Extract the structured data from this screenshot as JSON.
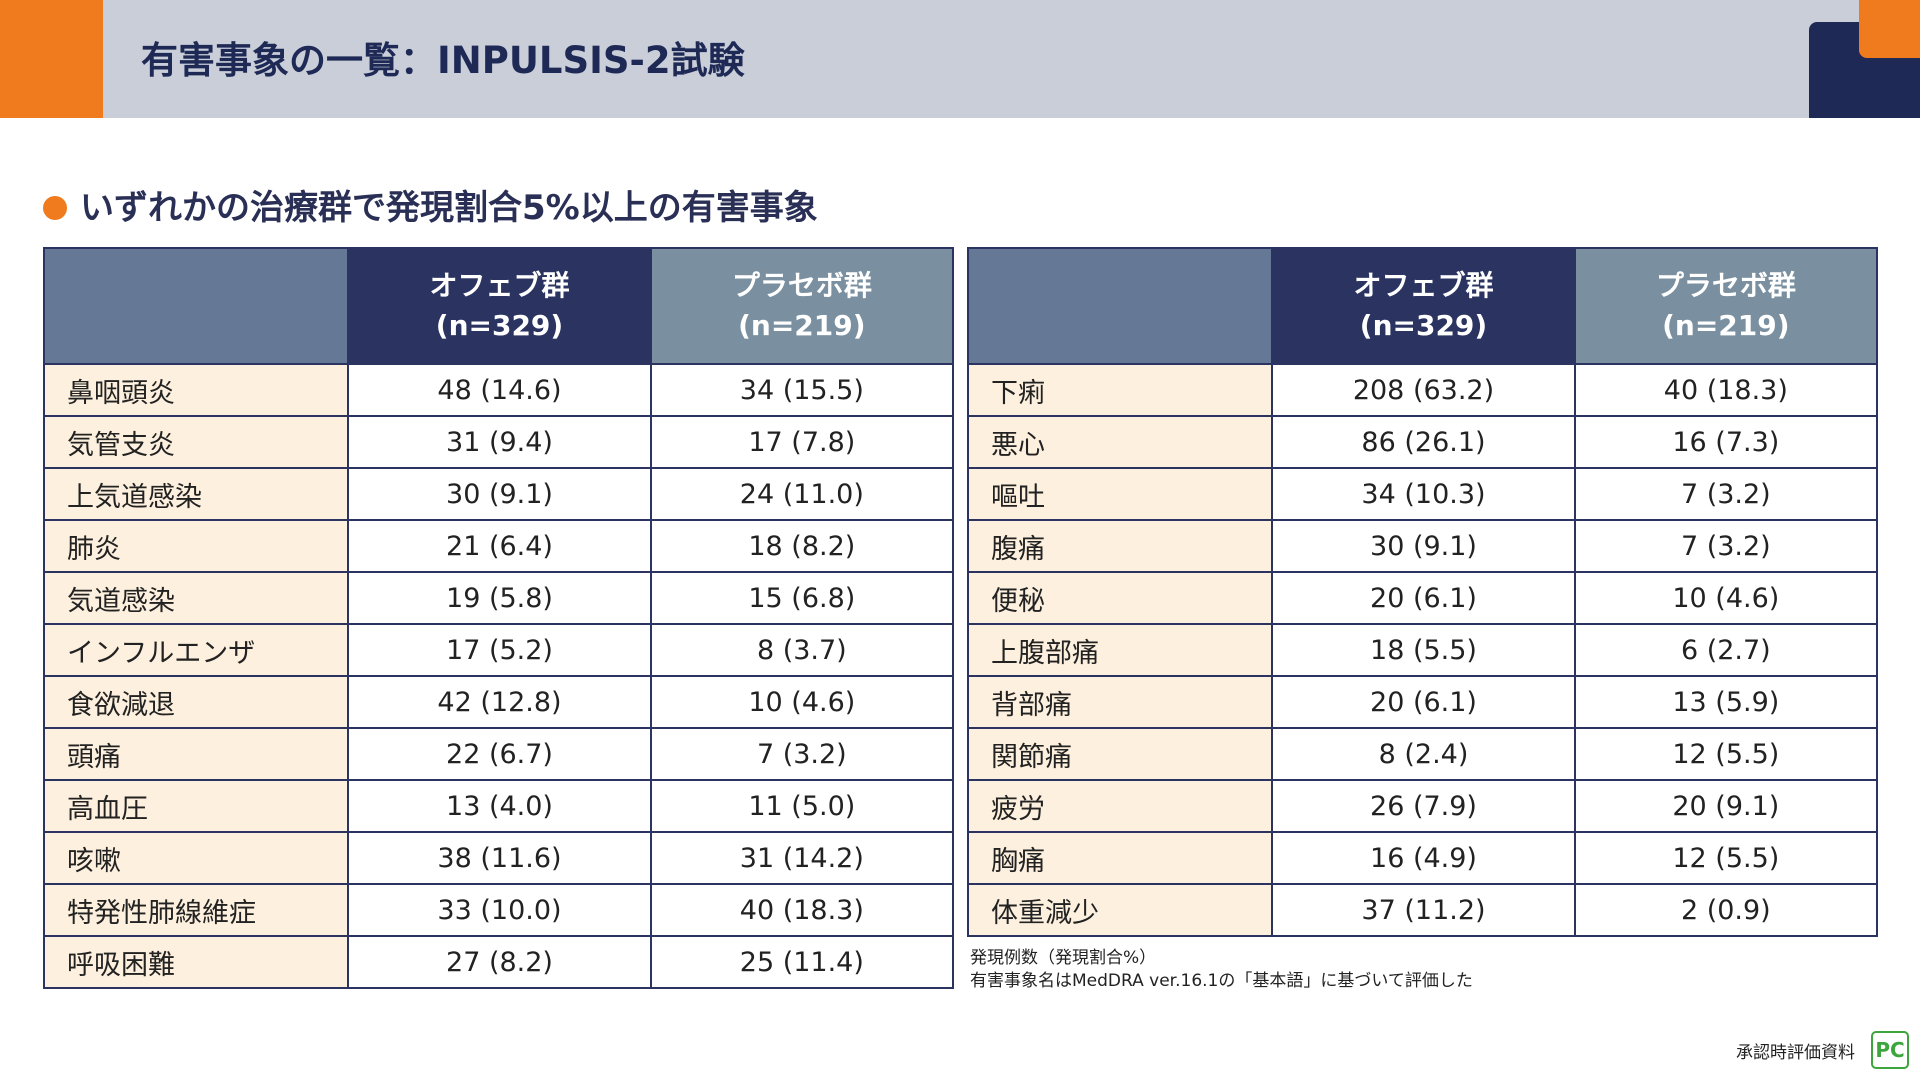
{
  "header": {
    "title": "有害事象の一覧：INPULSIS-2試験"
  },
  "section": {
    "heading": "いずれかの治療群で発現割合5%以上の有害事象"
  },
  "tables": [
    {
      "columns": [
        [
          "オフェブ群",
          "(n=329)"
        ],
        [
          "プラセボ群",
          "(n=219)"
        ]
      ],
      "rows": [
        [
          "鼻咽頭炎",
          "48 (14.6)",
          "34 (15.5)"
        ],
        [
          "気管支炎",
          "31 (9.4)",
          "17 (7.8)"
        ],
        [
          "上気道感染",
          "30 (9.1)",
          "24 (11.0)"
        ],
        [
          "肺炎",
          "21 (6.4)",
          "18 (8.2)"
        ],
        [
          "気道感染",
          "19 (5.8)",
          "15 (6.8)"
        ],
        [
          "インフルエンザ",
          "17 (5.2)",
          "8 (3.7)"
        ],
        [
          "食欲減退",
          "42 (12.8)",
          "10 (4.6)"
        ],
        [
          "頭痛",
          "22 (6.7)",
          "7 (3.2)"
        ],
        [
          "高血圧",
          "13 (4.0)",
          "11 (5.0)"
        ],
        [
          "咳嗽",
          "38 (11.6)",
          "31 (14.2)"
        ],
        [
          "特発性肺線維症",
          "33 (10.0)",
          "40 (18.3)"
        ],
        [
          "呼吸困難",
          "27 (8.2)",
          "25 (11.4)"
        ]
      ]
    },
    {
      "columns": [
        [
          "オフェブ群",
          "(n=329)"
        ],
        [
          "プラセボ群",
          "(n=219)"
        ]
      ],
      "rows": [
        [
          "下痢",
          "208 (63.2)",
          "40 (18.3)"
        ],
        [
          "悪心",
          "86 (26.1)",
          "16 (7.3)"
        ],
        [
          "嘔吐",
          "34 (10.3)",
          "7 (3.2)"
        ],
        [
          "腹痛",
          "30 (9.1)",
          "7 (3.2)"
        ],
        [
          "便秘",
          "20 (6.1)",
          "10 (4.6)"
        ],
        [
          "上腹部痛",
          "18 (5.5)",
          "6 (2.7)"
        ],
        [
          "背部痛",
          "20 (6.1)",
          "13 (5.9)"
        ],
        [
          "関節痛",
          "8 (2.4)",
          "12 (5.5)"
        ],
        [
          "疲労",
          "26 (7.9)",
          "20 (9.1)"
        ],
        [
          "胸痛",
          "16 (4.9)",
          "12 (5.5)"
        ],
        [
          "体重減少",
          "37 (11.2)",
          "2 (0.9)"
        ]
      ]
    }
  ],
  "footnotes": [
    "発現例数（発現割合%）",
    "有害事象名はMedDRA ver.16.1の「基本語」に基づいて評価した"
  ],
  "footer": {
    "label": "承認時評価資料",
    "logo": "PC"
  }
}
